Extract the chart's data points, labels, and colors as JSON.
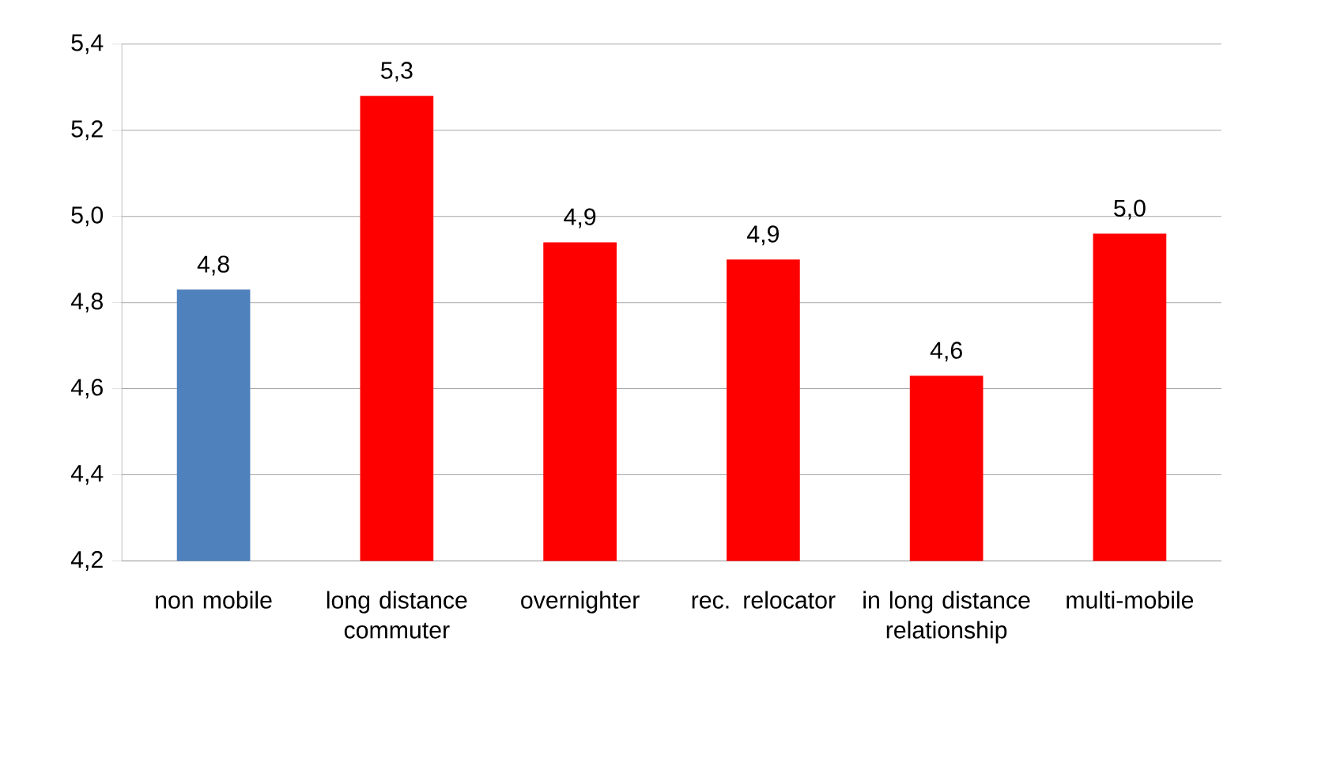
{
  "chart_data": {
    "type": "bar",
    "categories": [
      "non mobile",
      "long distance commuter",
      "overnighter",
      "rec. relocator",
      "in long distance relationship",
      "multi-mobile"
    ],
    "values": [
      4.83,
      5.28,
      4.94,
      4.9,
      4.63,
      4.96
    ],
    "colors": [
      "#4f81bd",
      "#ff0000",
      "#ff0000",
      "#ff0000",
      "#ff0000",
      "#ff0000"
    ],
    "value_labels": [
      "4,8",
      "5,3",
      "4,9",
      "4,9",
      "4,6",
      "5,0"
    ],
    "ylim": [
      4.2,
      5.4
    ],
    "yticks": [
      {
        "value": 4.2,
        "label": "4,2"
      },
      {
        "value": 4.4,
        "label": "4,4"
      },
      {
        "value": 4.6,
        "label": "4,6"
      },
      {
        "value": 4.8,
        "label": "4,8"
      },
      {
        "value": 5.0,
        "label": "5,0"
      },
      {
        "value": 5.2,
        "label": "5,2"
      },
      {
        "value": 5.4,
        "label": "5,4"
      }
    ],
    "grid": "y"
  }
}
